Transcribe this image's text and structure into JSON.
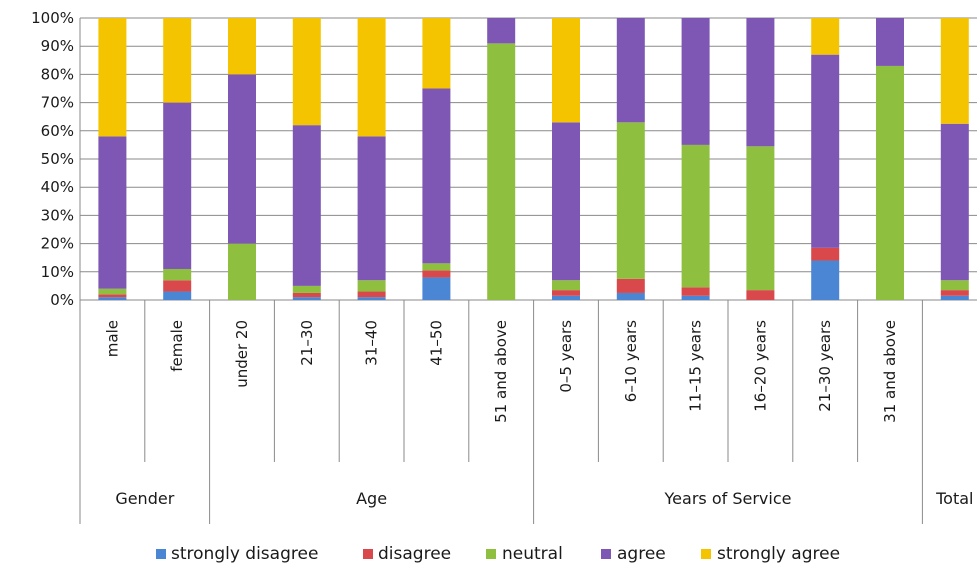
{
  "chart_data": {
    "type": "bar",
    "stacked": true,
    "percent": true,
    "ylim": [
      0,
      100
    ],
    "yticks": [
      "0%",
      "10%",
      "20%",
      "30%",
      "40%",
      "50%",
      "60%",
      "70%",
      "80%",
      "90%",
      "100%"
    ],
    "categories": [
      "male",
      "female",
      "under 20",
      "21–30",
      "31–40",
      "41–50",
      "51 and above",
      "0–5 years",
      "6–10 years",
      "11–15 years",
      "16–20 years",
      "21–30 years",
      "31 and above",
      ""
    ],
    "groups": [
      {
        "label": "Gender",
        "count": 2
      },
      {
        "label": "Age",
        "count": 5
      },
      {
        "label": "Years of Service",
        "count": 6
      },
      {
        "label": "Total",
        "count": 1
      }
    ],
    "series": [
      {
        "name": "strongly disagree",
        "color": "#4a86d4",
        "values": [
          1,
          3,
          0,
          1,
          1,
          8,
          0,
          1.5,
          2.5,
          1.5,
          0,
          14,
          0,
          1.5
        ]
      },
      {
        "name": "disagree",
        "color": "#d9484a",
        "values": [
          1,
          4,
          0,
          1.5,
          2,
          2.5,
          0,
          2,
          5,
          3,
          3.5,
          4.5,
          0,
          2
        ]
      },
      {
        "name": "neutral",
        "color": "#8fbf3f",
        "values": [
          2,
          4,
          20,
          2.5,
          4,
          2.5,
          91,
          3.5,
          55.5,
          50.5,
          51,
          0,
          83,
          3.5
        ]
      },
      {
        "name": "agree",
        "color": "#7d57b3",
        "values": [
          54,
          59,
          60,
          57,
          51,
          62,
          9,
          56,
          37,
          45,
          45.5,
          68.5,
          17,
          55.5
        ]
      },
      {
        "name": "strongly agree",
        "color": "#f5c400",
        "values": [
          42,
          30,
          20,
          38,
          42,
          25,
          0,
          37,
          0,
          0,
          0,
          13,
          0,
          37.5
        ]
      }
    ],
    "legend_position": "bottom",
    "grid": true
  }
}
